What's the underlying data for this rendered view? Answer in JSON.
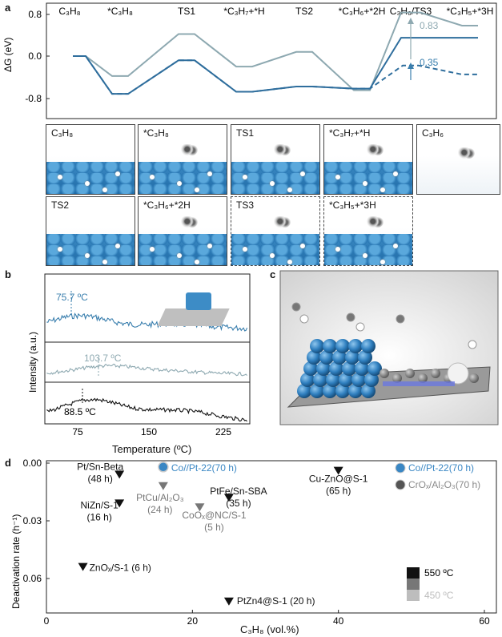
{
  "panel_a": {
    "letter": "a",
    "ylabel": "ΔG (eV)",
    "yticks": [
      "0.8",
      "0.0",
      "-0.8"
    ],
    "states": [
      "C₃H₈",
      "*C₃H₈",
      "TS1",
      "*C₃H₇+*H",
      "TS2",
      "*C₃H₆+*2H",
      "C₃H₆/TS3",
      "*C₃H₅+*3H"
    ],
    "annot_high": "0.83",
    "annot_low": "0.35",
    "tiles": [
      "C₃H₈",
      "*C₃H₈",
      "TS1",
      "*C₃H₇+*H",
      "C₃H₆",
      "TS2",
      "*C₃H₆+*2H",
      "TS3",
      "*C₃H₅+*3H"
    ]
  },
  "panel_b": {
    "letter": "b",
    "ylabel": "Intensity (a.u.)",
    "xlabel": "Temperature (ºC)",
    "xticks": [
      "75",
      "150",
      "225"
    ],
    "peaks": [
      "75.7 ºC",
      "103.7 ºC",
      "88.5 ºC"
    ]
  },
  "panel_c": {
    "letter": "c"
  },
  "panel_d": {
    "letter": "d",
    "ylabel": "Deactivation rate (h⁻¹)",
    "xlabel": "C₃H₈ (vol.%)",
    "yticks": [
      "0.00",
      "0.03",
      "0.06"
    ],
    "xticks": [
      "0",
      "20",
      "40",
      "60"
    ],
    "legend_temps": [
      "550 ºC",
      "450 ºC"
    ],
    "legend_cats": [
      "Co//Pt-22(70 h)",
      "CrOₓ/Al₂O₃(70 h)"
    ],
    "colors": {
      "co_pt": "#3a87c4",
      "cr": "#8a8a8a",
      "black": "#111111",
      "grey": "#777777",
      "light": "#bdbdbd"
    }
  },
  "chart_data": [
    {
      "type": "line",
      "ylabel": "ΔG (eV)",
      "ylim": [
        -1.1,
        1.0
      ],
      "x": [
        "C₃H₈",
        "*C₃H₈",
        "TS1",
        "*C₃H₇+*H",
        "TS2",
        "*C₃H₆+*2H",
        "C₃H₆/TS3",
        "*C₃H₅+*3H"
      ],
      "series": [
        {
          "values": [
            0.0,
            -0.38,
            0.42,
            -0.2,
            0.08,
            -0.65,
            0.83,
            0.58
          ]
        },
        {
          "values": [
            0.0,
            -0.72,
            -0.08,
            -0.68,
            -0.58,
            -0.62,
            0.35,
            0.35
          ]
        },
        {
          "values": [
            0.0,
            -0.72,
            -0.08,
            -0.68,
            -0.58,
            -0.62,
            -0.18,
            -0.35
          ]
        }
      ],
      "annotations": [
        "0.83",
        "0.35"
      ]
    },
    {
      "type": "line",
      "xlabel": "Temperature (ºC)",
      "ylabel": "Intensity (a.u.)",
      "xlim": [
        40,
        250
      ],
      "series": [
        {
          "peak": 75.7
        },
        {
          "peak": 103.7
        },
        {
          "peak": 88.5
        }
      ]
    },
    {
      "type": "scatter",
      "xlabel": "C₃H₈ (vol.%)",
      "ylabel": "Deactivation rate (h⁻¹)",
      "xlim": [
        0,
        60
      ],
      "ylim": [
        0.075,
        0.0
      ],
      "points": [
        {
          "label": "Pt/Sn-Beta (48 h)",
          "x": 10,
          "y": 0.006,
          "marker": "triangle",
          "shade": "black"
        },
        {
          "label": "NiZn/S-1 (16 h)",
          "x": 10,
          "y": 0.021,
          "marker": "triangle",
          "shade": "black"
        },
        {
          "label": "ZnOₓ/S-1 (6 h)",
          "x": 5,
          "y": 0.054,
          "marker": "triangle",
          "shade": "black"
        },
        {
          "label": "PtCu/Al₂O₃ (24 h)",
          "x": 16,
          "y": 0.012,
          "marker": "triangle",
          "shade": "grey"
        },
        {
          "label": "Co//Pt-22(70 h)",
          "x": 16,
          "y": 0.002,
          "marker": "circle",
          "shade": "blue"
        },
        {
          "label": "CoOₓ@NC/S-1 (5 h)",
          "x": 21,
          "y": 0.023,
          "marker": "triangle",
          "shade": "grey"
        },
        {
          "label": "PtFe/Sn-SBA (35 h)",
          "x": 25,
          "y": 0.018,
          "marker": "triangle",
          "shade": "black"
        },
        {
          "label": "PtZn4@S-1 (20 h)",
          "x": 25,
          "y": 0.072,
          "marker": "triangle",
          "shade": "black"
        },
        {
          "label": "Cu-ZnO@S-1 (65 h)",
          "x": 40,
          "y": 0.004,
          "marker": "triangle",
          "shade": "black"
        }
      ]
    }
  ]
}
